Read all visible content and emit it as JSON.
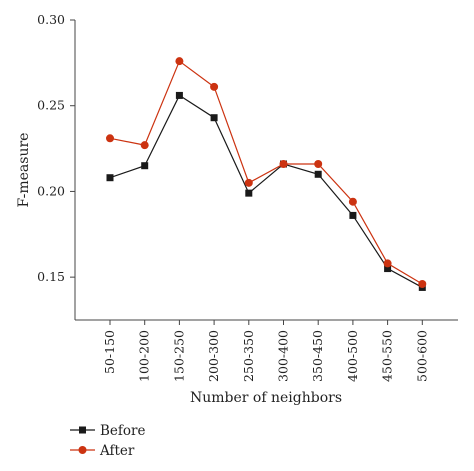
{
  "chart_data": {
    "type": "line",
    "xlabel": "Number of neighbors",
    "ylabel": "F-measure",
    "categories": [
      "50-150",
      "100-200",
      "150-250",
      "200-300",
      "250-350",
      "300-400",
      "350-450",
      "400-500",
      "450-550",
      "500-600"
    ],
    "ylim": [
      0.125,
      0.3
    ],
    "yticks": [
      "0.15",
      "0.20",
      "0.25",
      "0.30"
    ],
    "grid": false,
    "legend_position": "bottom-left",
    "series": [
      {
        "name": "Before",
        "color": "#1a1a1a",
        "marker": "square",
        "values": [
          0.208,
          0.215,
          0.256,
          0.243,
          0.199,
          0.216,
          0.21,
          0.186,
          0.155,
          0.144
        ]
      },
      {
        "name": "After",
        "color": "#cc3311",
        "marker": "circle",
        "values": [
          0.231,
          0.227,
          0.276,
          0.261,
          0.205,
          0.216,
          0.216,
          0.194,
          0.158,
          0.146
        ]
      }
    ]
  }
}
